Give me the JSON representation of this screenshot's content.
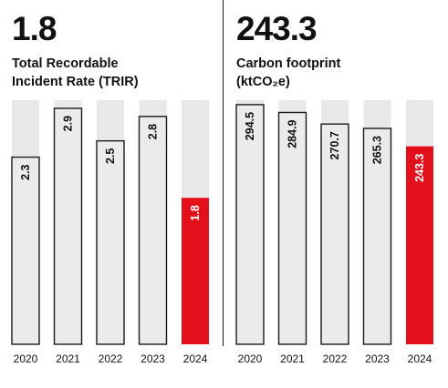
{
  "colors": {
    "track": "#e8e8e8",
    "bar_fill": "#ebebeb",
    "bar_stroke": "#1a1a1a",
    "highlight": "#e3101b",
    "text": "#111111",
    "highlight_text": "#ffffff"
  },
  "panels": [
    {
      "headline": "1.8",
      "label_lines": [
        "Total Recordable",
        "Incident Rate (TRIR)"
      ]
    },
    {
      "headline": "243.3",
      "label_lines": [
        "Carbon footprint",
        "(ktCO₂e)"
      ]
    }
  ],
  "chart_data": [
    {
      "type": "bar",
      "title": "Total Recordable Incident Rate (TRIR)",
      "categories": [
        "2020",
        "2021",
        "2022",
        "2023",
        "2024"
      ],
      "values": [
        2.3,
        2.9,
        2.5,
        2.8,
        1.8
      ],
      "value_labels": [
        "2.3",
        "2.9",
        "2.5",
        "2.8",
        "1.8"
      ],
      "highlight_index": 4,
      "ylim": [
        0,
        3.0
      ]
    },
    {
      "type": "bar",
      "title": "Carbon footprint (ktCO₂e)",
      "categories": [
        "2020",
        "2021",
        "2022",
        "2023",
        "2024"
      ],
      "values": [
        294.5,
        284.9,
        270.7,
        265.3,
        243.3
      ],
      "value_labels": [
        "294.5",
        "284.9",
        "270.7",
        "265.3",
        "243.3"
      ],
      "highlight_index": 4,
      "ylim": [
        0,
        300
      ]
    }
  ]
}
